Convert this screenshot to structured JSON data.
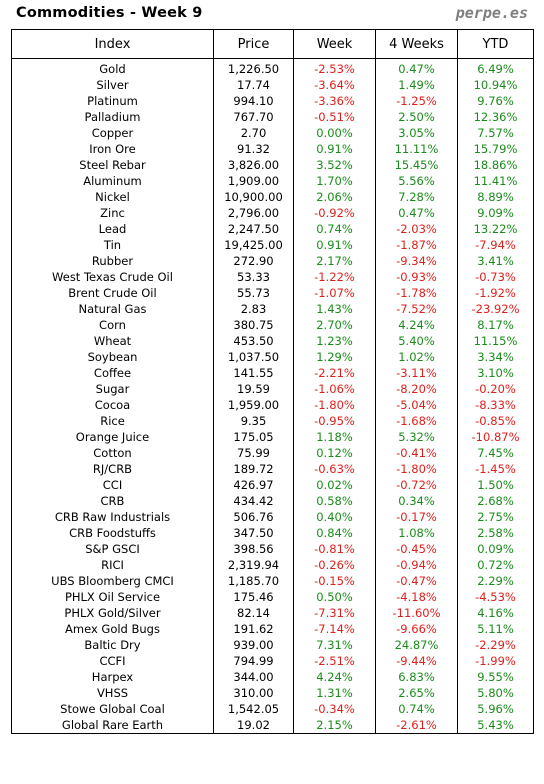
{
  "header": {
    "title": "Commodities - Week 9",
    "brand": "perpe.es"
  },
  "columns": [
    "Index",
    "Price",
    "Week",
    "4 Weeks",
    "YTD"
  ],
  "colors": {
    "positive": "#1a8c1a",
    "negative": "#e0201c"
  },
  "rows": [
    {
      "index": "Gold",
      "price": "1,226.50",
      "week": "-2.53%",
      "four_weeks": "0.47%",
      "ytd": "6.49%"
    },
    {
      "index": "Silver",
      "price": "17.74",
      "week": "-3.64%",
      "four_weeks": "1.49%",
      "ytd": "10.94%"
    },
    {
      "index": "Platinum",
      "price": "994.10",
      "week": "-3.36%",
      "four_weeks": "-1.25%",
      "ytd": "9.76%"
    },
    {
      "index": "Palladium",
      "price": "767.70",
      "week": "-0.51%",
      "four_weeks": "2.50%",
      "ytd": "12.36%"
    },
    {
      "index": "Copper",
      "price": "2.70",
      "week": "0.00%",
      "four_weeks": "3.05%",
      "ytd": "7.57%"
    },
    {
      "index": "Iron Ore",
      "price": "91.32",
      "week": "0.91%",
      "four_weeks": "11.11%",
      "ytd": "15.79%"
    },
    {
      "index": "Steel Rebar",
      "price": "3,826.00",
      "week": "3.52%",
      "four_weeks": "15.45%",
      "ytd": "18.86%"
    },
    {
      "index": "Aluminum",
      "price": "1,909.00",
      "week": "1.70%",
      "four_weeks": "5.56%",
      "ytd": "11.41%"
    },
    {
      "index": "Nickel",
      "price": "10,900.00",
      "week": "2.06%",
      "four_weeks": "7.28%",
      "ytd": "8.89%"
    },
    {
      "index": "Zinc",
      "price": "2,796.00",
      "week": "-0.92%",
      "four_weeks": "0.47%",
      "ytd": "9.09%"
    },
    {
      "index": "Lead",
      "price": "2,247.50",
      "week": "0.74%",
      "four_weeks": "-2.03%",
      "ytd": "13.22%"
    },
    {
      "index": "Tin",
      "price": "19,425.00",
      "week": "0.91%",
      "four_weeks": "-1.87%",
      "ytd": "-7.94%"
    },
    {
      "index": "Rubber",
      "price": "272.90",
      "week": "2.17%",
      "four_weeks": "-9.34%",
      "ytd": "3.41%"
    },
    {
      "index": "West Texas Crude Oil",
      "price": "53.33",
      "week": "-1.22%",
      "four_weeks": "-0.93%",
      "ytd": "-0.73%"
    },
    {
      "index": "Brent Crude Oil",
      "price": "55.73",
      "week": "-1.07%",
      "four_weeks": "-1.78%",
      "ytd": "-1.92%"
    },
    {
      "index": "Natural Gas",
      "price": "2.83",
      "week": "1.43%",
      "four_weeks": "-7.52%",
      "ytd": "-23.92%"
    },
    {
      "index": "Corn",
      "price": "380.75",
      "week": "2.70%",
      "four_weeks": "4.24%",
      "ytd": "8.17%"
    },
    {
      "index": "Wheat",
      "price": "453.50",
      "week": "1.23%",
      "four_weeks": "5.40%",
      "ytd": "11.15%"
    },
    {
      "index": "Soybean",
      "price": "1,037.50",
      "week": "1.29%",
      "four_weeks": "1.02%",
      "ytd": "3.34%"
    },
    {
      "index": "Coffee",
      "price": "141.55",
      "week": "-2.21%",
      "four_weeks": "-3.11%",
      "ytd": "3.10%"
    },
    {
      "index": "Sugar",
      "price": "19.59",
      "week": "-1.06%",
      "four_weeks": "-8.20%",
      "ytd": "-0.20%"
    },
    {
      "index": "Cocoa",
      "price": "1,959.00",
      "week": "-1.80%",
      "four_weeks": "-5.04%",
      "ytd": "-8.33%"
    },
    {
      "index": "Rice",
      "price": "9.35",
      "week": "-0.95%",
      "four_weeks": "-1.68%",
      "ytd": "-0.85%"
    },
    {
      "index": "Orange Juice",
      "price": "175.05",
      "week": "1.18%",
      "four_weeks": "5.32%",
      "ytd": "-10.87%"
    },
    {
      "index": "Cotton",
      "price": "75.99",
      "week": "0.12%",
      "four_weeks": "-0.41%",
      "ytd": "7.45%"
    },
    {
      "index": "RJ/CRB",
      "price": "189.72",
      "week": "-0.63%",
      "four_weeks": "-1.80%",
      "ytd": "-1.45%"
    },
    {
      "index": "CCI",
      "price": "426.97",
      "week": "0.02%",
      "four_weeks": "-0.72%",
      "ytd": "1.50%"
    },
    {
      "index": "CRB",
      "price": "434.42",
      "week": "0.58%",
      "four_weeks": "0.34%",
      "ytd": "2.68%"
    },
    {
      "index": "CRB Raw Industrials",
      "price": "506.76",
      "week": "0.40%",
      "four_weeks": "-0.17%",
      "ytd": "2.75%"
    },
    {
      "index": "CRB Foodstuffs",
      "price": "347.50",
      "week": "0.84%",
      "four_weeks": "1.08%",
      "ytd": "2.58%"
    },
    {
      "index": "S&P GSCI",
      "price": "398.56",
      "week": "-0.81%",
      "four_weeks": "-0.45%",
      "ytd": "0.09%"
    },
    {
      "index": "RICI",
      "price": "2,319.94",
      "week": "-0.26%",
      "four_weeks": "-0.94%",
      "ytd": "0.72%"
    },
    {
      "index": "UBS Bloomberg CMCI",
      "price": "1,185.70",
      "week": "-0.15%",
      "four_weeks": "-0.47%",
      "ytd": "2.29%"
    },
    {
      "index": "PHLX Oil Service",
      "price": "175.46",
      "week": "0.50%",
      "four_weeks": "-4.18%",
      "ytd": "-4.53%"
    },
    {
      "index": "PHLX Gold/Silver",
      "price": "82.14",
      "week": "-7.31%",
      "four_weeks": "-11.60%",
      "ytd": "4.16%"
    },
    {
      "index": "Amex Gold Bugs",
      "price": "191.62",
      "week": "-7.14%",
      "four_weeks": "-9.66%",
      "ytd": "5.11%"
    },
    {
      "index": "Baltic Dry",
      "price": "939.00",
      "week": "7.31%",
      "four_weeks": "24.87%",
      "ytd": "-2.29%"
    },
    {
      "index": "CCFI",
      "price": "794.99",
      "week": "-2.51%",
      "four_weeks": "-9.44%",
      "ytd": "-1.99%"
    },
    {
      "index": "Harpex",
      "price": "344.00",
      "week": "4.24%",
      "four_weeks": "6.83%",
      "ytd": "9.55%"
    },
    {
      "index": "VHSS",
      "price": "310.00",
      "week": "1.31%",
      "four_weeks": "2.65%",
      "ytd": "5.80%"
    },
    {
      "index": "Stowe Global Coal",
      "price": "1,542.05",
      "week": "-0.34%",
      "four_weeks": "0.74%",
      "ytd": "5.96%"
    },
    {
      "index": "Global Rare Earth",
      "price": "19.02",
      "week": "2.15%",
      "four_weeks": "-2.61%",
      "ytd": "5.43%"
    }
  ]
}
